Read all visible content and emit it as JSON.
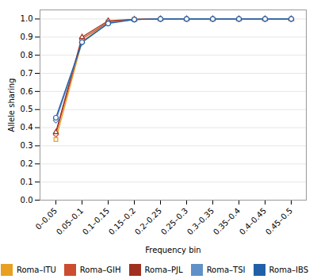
{
  "chart_data": {
    "type": "line",
    "xlabel": "Frequency bin",
    "ylabel": "Allele sharing",
    "categories": [
      "0–0.05",
      "0.05–0.1",
      "0.1–0.15",
      "0.15–0.2",
      "0.2–0.25",
      "0.25–0.3",
      "0.3–0.35",
      "0.35–0.4",
      "0.4–0.45",
      "0.45–0.5"
    ],
    "series": [
      {
        "name": "Roma–ITU",
        "color": "#E8A020",
        "marker": "square",
        "values": [
          0.335,
          0.875,
          0.985,
          0.998,
          1.0,
          1.0,
          1.0,
          1.0,
          1.0,
          1.0
        ]
      },
      {
        "name": "Roma–GIH",
        "color": "#CC4C30",
        "marker": "circle",
        "values": [
          0.365,
          0.89,
          0.982,
          0.997,
          1.0,
          1.0,
          1.0,
          1.0,
          1.0,
          1.0
        ]
      },
      {
        "name": "Roma–PJL",
        "color": "#A03020",
        "marker": "triangle",
        "values": [
          0.375,
          0.9,
          0.99,
          0.998,
          1.0,
          1.0,
          1.0,
          1.0,
          1.0,
          1.0
        ]
      },
      {
        "name": "Roma–TSI",
        "color": "#6090C8",
        "marker": "diamond",
        "values": [
          0.44,
          0.87,
          0.978,
          0.997,
          1.0,
          1.0,
          1.0,
          1.0,
          1.0,
          1.0
        ]
      },
      {
        "name": "Roma–IBS",
        "color": "#2060A8",
        "marker": "circle",
        "values": [
          0.455,
          0.872,
          0.975,
          0.997,
          1.0,
          1.0,
          1.0,
          1.0,
          1.0,
          1.0
        ]
      }
    ],
    "ylim": [
      0.0,
      1.05
    ],
    "yticks": [
      {
        "value": 0.0,
        "label": "0.0"
      },
      0.1,
      0.2,
      0.3,
      0.4,
      0.5,
      0.6,
      0.7,
      0.8,
      0.9,
      {
        "value": 1.0,
        "label": "1.0"
      }
    ],
    "grid": true,
    "legend": "bottom"
  }
}
